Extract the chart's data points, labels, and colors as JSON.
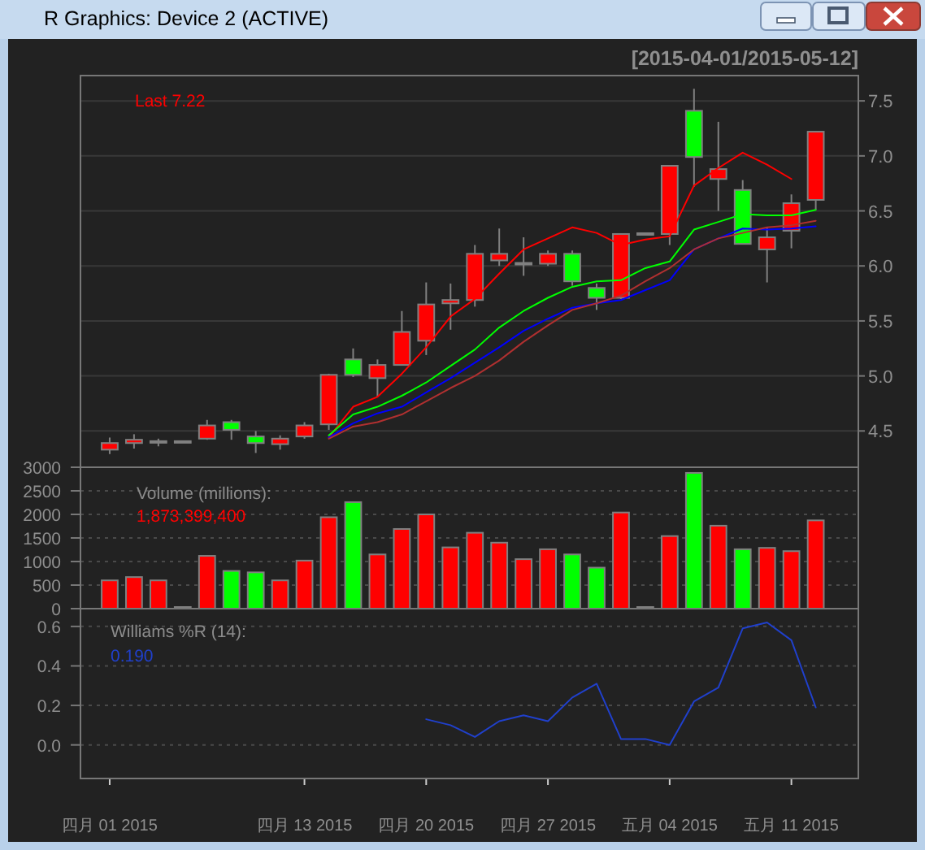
{
  "chart_data": [
    {
      "type": "candlestick",
      "subtitle": "[2015-04-01/2015-05-12]",
      "annotations": [
        "R Graphics: Device 2 (ACTIVE)",
        "Last 7.22"
      ],
      "categories": [
        null,
        null,
        null,
        null,
        null,
        null,
        null,
        null,
        null,
        null,
        null,
        null,
        null,
        null,
        null,
        null,
        null,
        null,
        null,
        null,
        null,
        null,
        null,
        null,
        null,
        null,
        null,
        null,
        null,
        null
      ],
      "ohlc": [
        [
          4.33,
          4.44,
          4.29,
          4.39
        ],
        [
          4.39,
          4.47,
          4.34,
          4.42
        ],
        [
          4.4,
          4.43,
          4.36,
          4.4
        ],
        [
          4.4,
          4.4,
          4.4,
          4.4
        ],
        [
          4.43,
          4.6,
          4.42,
          4.55
        ],
        [
          4.58,
          4.6,
          4.42,
          4.51
        ],
        [
          4.45,
          4.5,
          4.3,
          4.39
        ],
        [
          4.38,
          4.46,
          4.33,
          4.43
        ],
        [
          4.45,
          4.58,
          4.43,
          4.55
        ],
        [
          4.56,
          5.02,
          4.51,
          5.01
        ],
        [
          5.15,
          5.25,
          4.99,
          5.01
        ],
        [
          4.98,
          5.15,
          4.81,
          5.1
        ],
        [
          5.1,
          5.59,
          5.1,
          5.4
        ],
        [
          5.32,
          5.85,
          5.19,
          5.65
        ],
        [
          5.66,
          5.84,
          5.42,
          5.69
        ],
        [
          5.69,
          6.19,
          5.63,
          6.11
        ],
        [
          6.05,
          6.34,
          6.0,
          6.11
        ],
        [
          6.02,
          6.26,
          5.91,
          6.02
        ],
        [
          6.02,
          6.14,
          6.0,
          6.11
        ],
        [
          6.11,
          6.14,
          5.82,
          5.86
        ],
        [
          5.8,
          5.84,
          5.6,
          5.71
        ],
        [
          5.71,
          6.29,
          5.7,
          6.29
        ],
        [
          6.29,
          6.29,
          6.29,
          6.29
        ],
        [
          6.29,
          6.91,
          6.19,
          6.91
        ],
        [
          7.41,
          7.61,
          6.72,
          6.99
        ],
        [
          6.79,
          7.31,
          6.5,
          6.88
        ],
        [
          6.69,
          6.78,
          6.2,
          6.2
        ],
        [
          6.15,
          6.35,
          5.85,
          6.26
        ],
        [
          6.32,
          6.65,
          6.16,
          6.57
        ],
        [
          6.6,
          7.22,
          6.51,
          7.22
        ]
      ],
      "colors": [
        "#ff0000",
        "#ff0000",
        "#808080",
        "#808080",
        "#ff0000",
        "#00ff00",
        "#00ff00",
        "#ff0000",
        "#ff0000",
        "#ff0000",
        "#00ff00",
        "#ff0000",
        "#ff0000",
        "#ff0000",
        "#ff0000",
        "#ff0000",
        "#ff0000",
        "#808080",
        "#ff0000",
        "#00ff00",
        "#00ff00",
        "#ff0000",
        "#808080",
        "#ff0000",
        "#00ff00",
        "#ff0000",
        "#00ff00",
        "#ff0000",
        "#ff0000",
        "#ff0000"
      ],
      "series": [
        {
          "type": "line",
          "color": "#ff0000",
          "values": [
            null,
            null,
            null,
            null,
            null,
            null,
            null,
            null,
            null,
            4.44,
            4.72,
            4.81,
            5.02,
            5.26,
            5.54,
            5.7,
            5.93,
            6.15,
            6.25,
            6.35,
            6.3,
            6.19,
            6.24,
            6.27,
            6.73,
            6.89,
            7.03,
            6.92,
            6.79,
            null
          ]
        },
        {
          "type": "line",
          "color": "#00ff00",
          "values": [
            null,
            null,
            null,
            null,
            null,
            null,
            null,
            null,
            null,
            4.46,
            4.65,
            4.72,
            4.82,
            4.94,
            5.09,
            5.24,
            5.44,
            5.59,
            5.71,
            5.81,
            5.86,
            5.87,
            5.98,
            6.04,
            6.33,
            6.4,
            6.47,
            6.46,
            6.46,
            6.51
          ]
        },
        {
          "type": "line",
          "color": "#0000ff",
          "values": [
            null,
            null,
            null,
            null,
            null,
            null,
            null,
            null,
            null,
            4.44,
            4.57,
            4.66,
            4.72,
            4.85,
            4.98,
            5.12,
            5.26,
            5.41,
            5.52,
            5.62,
            5.66,
            5.69,
            5.78,
            5.87,
            6.15,
            6.25,
            6.34,
            6.33,
            6.34,
            6.36
          ]
        },
        {
          "type": "line",
          "color": "#b03030",
          "values": [
            null,
            null,
            null,
            null,
            null,
            null,
            null,
            null,
            null,
            4.43,
            4.54,
            4.58,
            4.65,
            4.77,
            4.89,
            5.0,
            5.14,
            5.31,
            5.46,
            5.6,
            5.66,
            5.73,
            5.86,
            5.98,
            6.15,
            6.25,
            6.3,
            6.35,
            6.37,
            6.41
          ]
        }
      ],
      "ylim": [
        4.17,
        7.73
      ],
      "yticks": [
        4.5,
        {
          "value": 5,
          "label": "5.0"
        },
        5.5,
        {
          "value": 6,
          "label": "6.0"
        },
        6.5,
        {
          "value": 7,
          "label": "7.0"
        },
        7.5
      ],
      "grid": "y",
      "tick_labels": "y"
    },
    {
      "type": "bar",
      "annotations": [
        "Volume (millions):",
        "1,873,399,400"
      ],
      "categories": [
        null,
        null,
        null,
        null,
        null,
        null,
        null,
        null,
        null,
        null,
        null,
        null,
        null,
        null,
        null,
        null,
        null,
        null,
        null,
        null,
        null,
        null,
        null,
        null,
        null,
        null,
        null,
        null,
        null,
        null
      ],
      "values": [
        600,
        670,
        600,
        0,
        1120,
        800,
        770,
        600,
        1020,
        1940,
        2260,
        1150,
        1690,
        2000,
        1300,
        1610,
        1400,
        1050,
        1260,
        1150,
        870,
        2040,
        0,
        1540,
        2880,
        1760,
        1260,
        1290,
        1220,
        1873
      ],
      "colors": [
        "#ff0000",
        "#ff0000",
        "#ff0000",
        "#808080",
        "#ff0000",
        "#00ff00",
        "#00ff00",
        "#ff0000",
        "#ff0000",
        "#ff0000",
        "#00ff00",
        "#ff0000",
        "#ff0000",
        "#ff0000",
        "#ff0000",
        "#ff0000",
        "#ff0000",
        "#ff0000",
        "#ff0000",
        "#00ff00",
        "#00ff00",
        "#ff0000",
        "#808080",
        "#ff0000",
        "#00ff00",
        "#ff0000",
        "#00ff00",
        "#ff0000",
        "#ff0000",
        "#ff0000"
      ],
      "ylim": [
        0,
        3000
      ],
      "yticks": [
        0,
        500,
        1000,
        1500,
        2000,
        2500,
        3000
      ],
      "grid": "y",
      "tick_labels": "y"
    },
    {
      "type": "line",
      "annotations": [
        "Williams %R (14):",
        "0.190"
      ],
      "categories": [
        "四月 01 2015",
        null,
        null,
        null,
        null,
        null,
        null,
        null,
        "四月 13 2015",
        null,
        null,
        null,
        null,
        "四月 20 2015",
        null,
        null,
        null,
        null,
        "四月 27 2015",
        null,
        null,
        null,
        null,
        "五月 04 2015",
        null,
        null,
        null,
        null,
        "五月 11 2015",
        null
      ],
      "series": [
        {
          "color": "#2040cc",
          "values": [
            null,
            null,
            null,
            null,
            null,
            null,
            null,
            null,
            null,
            null,
            null,
            null,
            null,
            0.13,
            0.1,
            0.04,
            0.12,
            0.15,
            0.12,
            0.24,
            0.31,
            0.03,
            0.03,
            0.0,
            0.22,
            0.29,
            0.59,
            0.62,
            0.53,
            0.19
          ]
        }
      ],
      "ylim": [
        -0.17,
        0.69
      ],
      "yticks": [
        {
          "value": 0,
          "label": "0.0"
        },
        0.2,
        0.4,
        0.6
      ],
      "grid": "y"
    }
  ]
}
